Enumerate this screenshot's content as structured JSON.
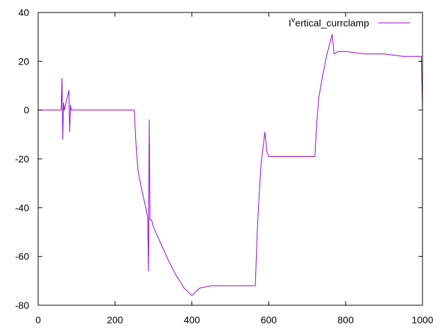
{
  "colors": {
    "series": "#9400d3",
    "axis": "#000000",
    "background": "#ffffff"
  },
  "chart_data": {
    "type": "line",
    "title": "",
    "xlabel": "",
    "ylabel": "",
    "xlim": [
      0,
      1000
    ],
    "ylim": [
      -80,
      40
    ],
    "grid": false,
    "legend_position": "top-right",
    "x_ticks": [
      0,
      200,
      400,
      600,
      800,
      1000
    ],
    "x_tick_labels": [
      "0",
      "200",
      "400",
      "600",
      "800",
      "1000"
    ],
    "y_ticks": [
      -80,
      -60,
      -40,
      -20,
      0,
      20,
      40
    ],
    "y_tick_labels": [
      "-80",
      "-60",
      "-40",
      "-20",
      "0",
      "20",
      "40"
    ],
    "series": [
      {
        "name": "I",
        "name_superscript": "v",
        "name_rest": "ertical_currclamp",
        "color": "#9400d3",
        "x": [
          0,
          60,
          62,
          64,
          66,
          68,
          80,
          82,
          84,
          86,
          100,
          150,
          200,
          250,
          255,
          260,
          270,
          280,
          285,
          287,
          289,
          291,
          295,
          300,
          320,
          340,
          360,
          380,
          400,
          420,
          450,
          500,
          540,
          565,
          570,
          575,
          580,
          590,
          595,
          600,
          620,
          650,
          700,
          720,
          725,
          730,
          740,
          750,
          760,
          765,
          770,
          780,
          800,
          850,
          900,
          950,
          990,
          997,
          1000
        ],
        "y": [
          0,
          0,
          13,
          -12,
          3,
          0,
          8,
          -9,
          2,
          0,
          0,
          0,
          0,
          0,
          -15,
          -25,
          -33,
          -40,
          -44,
          -66,
          -4,
          -45,
          -45,
          -48,
          -55,
          -62,
          -68,
          -73,
          -76,
          -73,
          -72,
          -72,
          -72,
          -72,
          -50,
          -35,
          -22,
          -9,
          -17,
          -19,
          -19,
          -19,
          -19,
          -19,
          -5,
          5,
          14,
          22,
          28,
          31,
          23,
          24,
          24,
          23,
          23,
          22,
          22,
          22,
          0
        ]
      }
    ]
  }
}
